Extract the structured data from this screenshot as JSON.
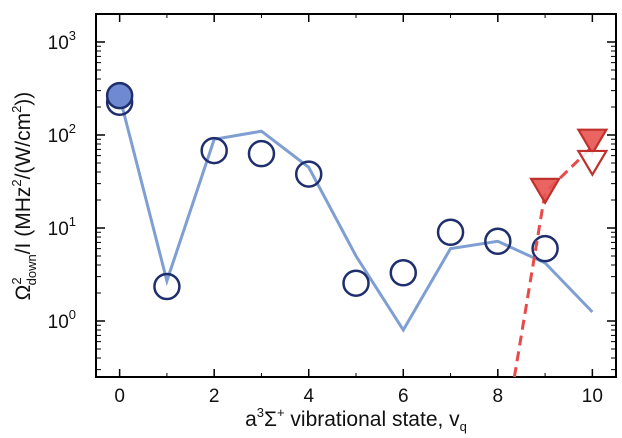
{
  "chart_data": {
    "type": "line",
    "xlabel_parts": {
      "a": "a",
      "sup3": "3",
      "sigma": "Σ",
      "plus": "+",
      "rest": " vibrational state, v",
      "sub": "q"
    },
    "ylabel_parts": {
      "omega": "Ω",
      "sup2": "2",
      "down": "down",
      "rest1": "/I  (MHz",
      "sup2b": "2",
      "rest2": "/(W/cm",
      "sup2c": "2",
      "rest3": "))"
    },
    "xlim": [
      -0.5,
      10.5
    ],
    "ylim": [
      0.25,
      2000
    ],
    "yscale": "log",
    "x_ticks": [
      0,
      2,
      4,
      6,
      8,
      10
    ],
    "x_tick_labels": [
      "0",
      "2",
      "4",
      "6",
      "8",
      "10"
    ],
    "y_ticks": [
      1,
      10,
      100,
      1000
    ],
    "y_tick_labels": [
      {
        "base": "10",
        "exp": "0"
      },
      {
        "base": "10",
        "exp": "1"
      },
      {
        "base": "10",
        "exp": "2"
      },
      {
        "base": "10",
        "exp": "3"
      }
    ],
    "series": [
      {
        "kind": "line",
        "color": "#7f9fd3",
        "x": [
          0,
          1,
          2,
          3,
          4,
          5,
          6,
          7,
          8,
          9,
          10
        ],
        "y": [
          260,
          2.7,
          90,
          110,
          45,
          5,
          0.8,
          6,
          7.2,
          4.2,
          1.25
        ]
      },
      {
        "kind": "open-circles",
        "color": "#1f2f6e",
        "x": [
          0,
          1,
          2,
          3,
          4,
          5,
          6,
          7,
          8,
          9
        ],
        "y": [
          225,
          2.35,
          68,
          63,
          38,
          2.55,
          3.3,
          9,
          7.2,
          6
        ]
      },
      {
        "kind": "filled-circle",
        "color": "#1f2f6e",
        "fill": "#6f8ad0",
        "x": [
          0
        ],
        "y": [
          265
        ]
      },
      {
        "kind": "dashed-line",
        "color": "#e84a4a",
        "x": [
          8.35,
          9,
          10
        ],
        "y": [
          0.25,
          24,
          75
        ]
      },
      {
        "kind": "filled-triangles-down",
        "color": "#c0302c",
        "fill": "#e85450",
        "x": [
          9,
          10
        ],
        "y": [
          26,
          88
        ]
      },
      {
        "kind": "open-triangle-down",
        "color": "#c0302c",
        "x": [
          10
        ],
        "y": [
          52
        ]
      }
    ]
  }
}
